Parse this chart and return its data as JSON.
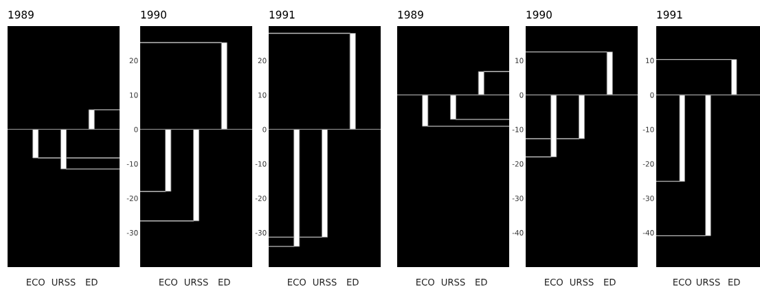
{
  "chart_data": [
    {
      "type": "bar",
      "title": "1989",
      "categories": [
        "ECO",
        "URSS",
        "ED"
      ],
      "values": [
        -8.3,
        -11.5,
        5.7
      ],
      "color": "#ffffff",
      "ylim": [
        -40,
        30
      ],
      "yticks": [
        -30,
        -20,
        -10,
        0,
        10,
        20
      ],
      "tick_labels": "x",
      "ref_lines": [
        {
          "axis": "y",
          "value": -8.3,
          "color": "#bbbbbb"
        },
        {
          "axis": "y",
          "value": -11.5,
          "color": "#bbbbbb"
        },
        {
          "axis": "y",
          "value": 5.7,
          "color": "#bbbbbb"
        }
      ]
    },
    {
      "type": "bar",
      "title": "1990",
      "categories": [
        "ECO",
        "URSS",
        "ED"
      ],
      "values": [
        -18.0,
        -26.6,
        25.2
      ],
      "color": "#ffffff",
      "ylim": [
        -40,
        30
      ],
      "yticks": [
        -30,
        -20,
        -10,
        0,
        10,
        20
      ],
      "ref_lines": [
        {
          "axis": "y",
          "value": -18.0,
          "color": "#bbbbbb"
        },
        {
          "axis": "y",
          "value": -26.6,
          "color": "#bbbbbb"
        },
        {
          "axis": "y",
          "value": 25.2,
          "color": "#bbbbbb"
        }
      ]
    },
    {
      "type": "bar",
      "title": "1991",
      "categories": [
        "ECO",
        "URSS",
        "ED"
      ],
      "values": [
        -34.0,
        -31.3,
        27.9
      ],
      "color": "#ffffff",
      "ylim": [
        -40,
        30
      ],
      "yticks": [
        -30,
        -20,
        -10,
        0,
        10,
        20
      ],
      "ref_lines": [
        {
          "axis": "y",
          "value": -34.0,
          "color": "#bbbbbb"
        },
        {
          "axis": "y",
          "value": -31.3,
          "color": "#bbbbbb"
        },
        {
          "axis": "y",
          "value": 27.9,
          "color": "#bbbbbb"
        }
      ]
    },
    {
      "type": "bar",
      "title": "1989",
      "categories": [
        "ECO",
        "URSS",
        "ED"
      ],
      "values": [
        -9.1,
        -7.1,
        6.8
      ],
      "color": "#ffffff",
      "ylim": [
        -50,
        20
      ],
      "yticks": [
        -40,
        -30,
        -20,
        -10,
        0,
        10
      ],
      "tick_labels": "x",
      "ref_lines": [
        {
          "axis": "y",
          "value": -9.1,
          "color": "#bbbbbb"
        },
        {
          "axis": "y",
          "value": -7.1,
          "color": "#bbbbbb"
        },
        {
          "axis": "y",
          "value": 6.8,
          "color": "#bbbbbb"
        }
      ]
    },
    {
      "type": "bar",
      "title": "1990",
      "categories": [
        "ECO",
        "URSS",
        "ED"
      ],
      "values": [
        -18.0,
        -12.7,
        12.5
      ],
      "color": "#ffffff",
      "ylim": [
        -50,
        20
      ],
      "yticks": [
        -40,
        -30,
        -20,
        -10,
        0,
        10
      ],
      "ref_lines": [
        {
          "axis": "y",
          "value": -18.0,
          "color": "#bbbbbb"
        },
        {
          "axis": "y",
          "value": -12.7,
          "color": "#bbbbbb"
        },
        {
          "axis": "y",
          "value": 12.5,
          "color": "#bbbbbb"
        }
      ]
    },
    {
      "type": "bar",
      "title": "1991",
      "categories": [
        "ECO",
        "URSS",
        "ED"
      ],
      "values": [
        -25.1,
        -40.9,
        10.3
      ],
      "color": "#ffffff",
      "ylim": [
        -50,
        20
      ],
      "yticks": [
        -40,
        -30,
        -20,
        -10,
        0,
        10
      ],
      "ref_lines": [
        {
          "axis": "y",
          "value": -25.1,
          "color": "#bbbbbb"
        },
        {
          "axis": "y",
          "value": -40.9,
          "color": "#bbbbbb"
        },
        {
          "axis": "y",
          "value": 10.3,
          "color": "#bbbbbb"
        }
      ]
    }
  ]
}
